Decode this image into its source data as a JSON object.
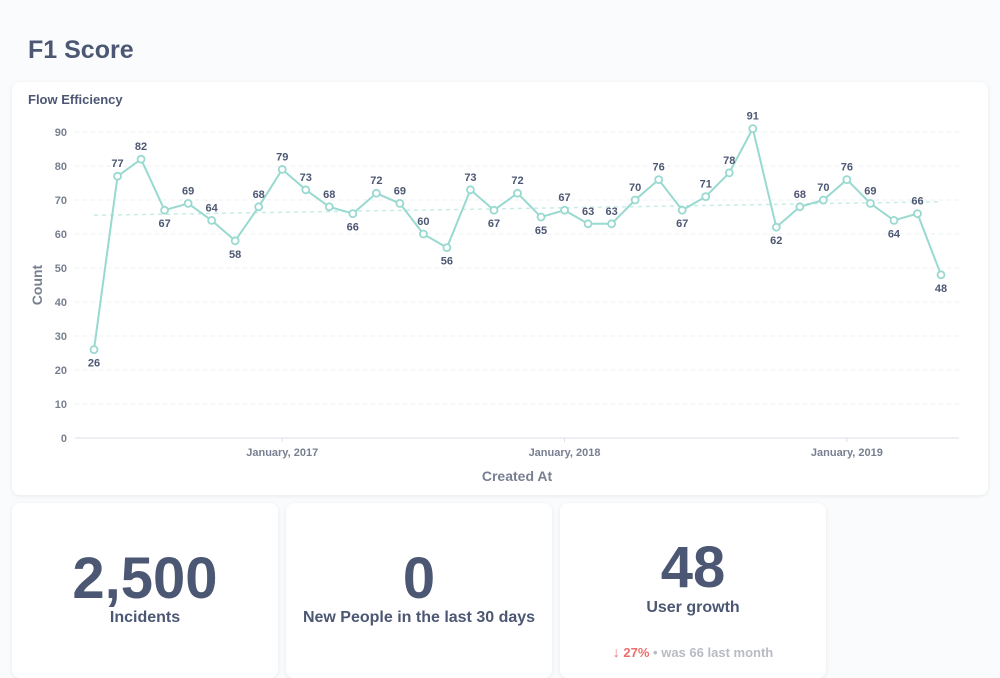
{
  "page": {
    "title": "F1 Score"
  },
  "chart_card": {
    "title": "Flow Efficiency",
    "accent_color": "#98d9d0",
    "trend_color": "#c8ece7"
  },
  "chart_data": {
    "type": "line",
    "title": "Flow Efficiency",
    "xlabel": "Created At",
    "ylabel": "Count",
    "ylim": [
      0,
      90
    ],
    "y_ticks": [
      0,
      10,
      20,
      30,
      40,
      50,
      60,
      70,
      80,
      90
    ],
    "x_ticks": [
      "January, 2017",
      "January, 2018",
      "January, 2019"
    ],
    "x": [
      "2016-05",
      "2016-06",
      "2016-07",
      "2016-08",
      "2016-09",
      "2016-10",
      "2016-11",
      "2016-12",
      "2017-01",
      "2017-02",
      "2017-03",
      "2017-04",
      "2017-05",
      "2017-06",
      "2017-07",
      "2017-08",
      "2017-09",
      "2017-10",
      "2017-11",
      "2017-12",
      "2018-01",
      "2018-02",
      "2018-03",
      "2018-04",
      "2018-05",
      "2018-06",
      "2018-07",
      "2018-08",
      "2018-09",
      "2018-10",
      "2018-11",
      "2018-12",
      "2019-01",
      "2019-02",
      "2019-03",
      "2019-04",
      "2019-05"
    ],
    "series": [
      {
        "values": [
          26,
          77,
          82,
          67,
          69,
          64,
          58,
          68,
          79,
          73,
          68,
          66,
          72,
          69,
          60,
          56,
          73,
          67,
          72,
          65,
          67,
          63,
          63,
          70,
          76,
          67,
          71,
          78,
          91,
          62,
          68,
          70,
          76,
          69,
          64,
          66,
          48
        ]
      }
    ],
    "trend_line": [
      65.5,
      69.5
    ],
    "grid": true,
    "legend": "none"
  },
  "scalars": [
    {
      "value": "2,500",
      "label": "Incidents"
    },
    {
      "value": "0",
      "label": "New People in the last 30 days"
    },
    {
      "value": "48",
      "label": "User growth",
      "change": "27%",
      "separator": "•",
      "was_text": "was 66",
      "period": "last month",
      "down_color": "#ed6e6e"
    }
  ]
}
